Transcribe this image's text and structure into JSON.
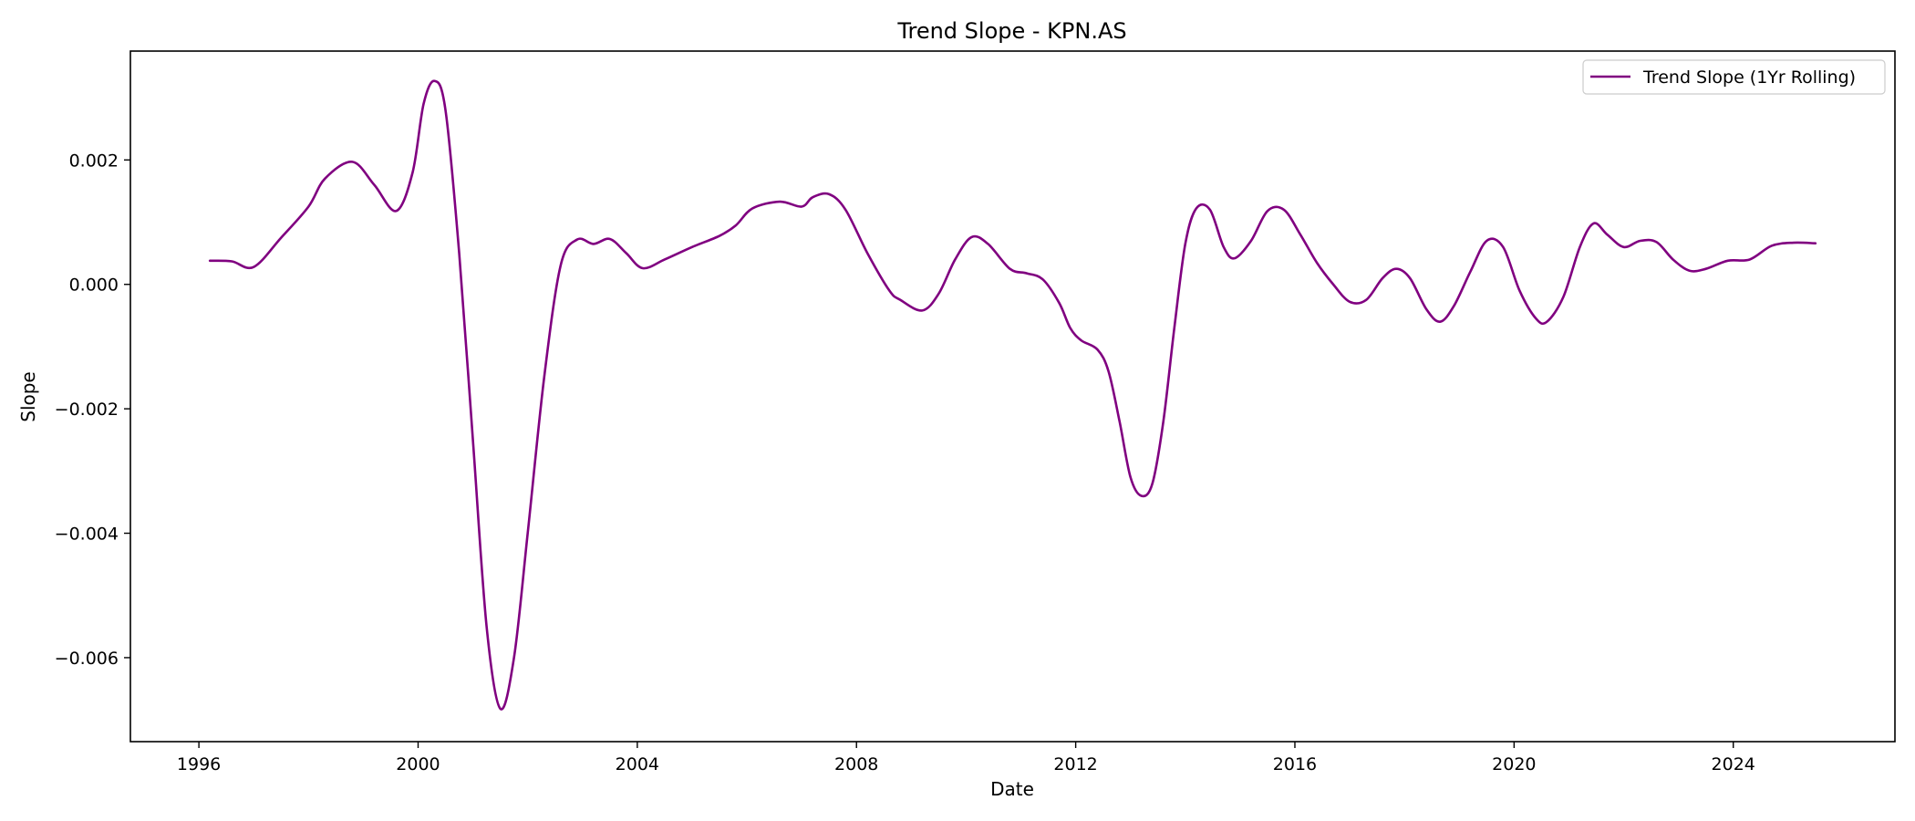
{
  "chart_data": {
    "type": "line",
    "title": "Trend Slope - KPN.AS",
    "xlabel": "Date",
    "ylabel": "Slope",
    "xlim": [
      1994.75,
      2026.95
    ],
    "ylim": [
      -0.00735,
      0.00375
    ],
    "x_ticks": [
      {
        "value": 1996,
        "label": "1996"
      },
      {
        "value": 2000,
        "label": "2000"
      },
      {
        "value": 2004,
        "label": "2004"
      },
      {
        "value": 2008,
        "label": "2008"
      },
      {
        "value": 2012,
        "label": "2012"
      },
      {
        "value": 2016,
        "label": "2016"
      },
      {
        "value": 2020,
        "label": "2020"
      },
      {
        "value": 2024,
        "label": "2024"
      }
    ],
    "y_ticks": [
      {
        "value": 0.002,
        "label": "0.002"
      },
      {
        "value": 0.0,
        "label": "0.000"
      },
      {
        "value": -0.002,
        "label": "−0.002"
      },
      {
        "value": -0.004,
        "label": "−0.004"
      },
      {
        "value": -0.006,
        "label": "−0.006"
      }
    ],
    "grid": false,
    "legend": {
      "placement": "top-right"
    },
    "series": [
      {
        "name": "Trend Slope (1Yr Rolling)",
        "color": "#800080",
        "points": [
          [
            1996.2,
            0.00038
          ],
          [
            1996.6,
            0.00037
          ],
          [
            1997.0,
            0.00028
          ],
          [
            1997.5,
            0.00075
          ],
          [
            1998.0,
            0.00125
          ],
          [
            1998.3,
            0.0017
          ],
          [
            1998.8,
            0.00197
          ],
          [
            1999.2,
            0.0016
          ],
          [
            1999.6,
            0.00118
          ],
          [
            1999.9,
            0.0018
          ],
          [
            2000.1,
            0.0029
          ],
          [
            2000.3,
            0.00327
          ],
          [
            2000.5,
            0.0028
          ],
          [
            2000.75,
            0.0005
          ],
          [
            2001.0,
            -0.0025
          ],
          [
            2001.25,
            -0.0055
          ],
          [
            2001.5,
            -0.00682
          ],
          [
            2001.75,
            -0.006
          ],
          [
            2002.0,
            -0.004
          ],
          [
            2002.3,
            -0.0015
          ],
          [
            2002.6,
            0.0003
          ],
          [
            2002.9,
            0.00072
          ],
          [
            2003.2,
            0.00065
          ],
          [
            2003.5,
            0.00073
          ],
          [
            2003.8,
            0.0005
          ],
          [
            2004.1,
            0.00026
          ],
          [
            2004.5,
            0.0004
          ],
          [
            2005.0,
            0.0006
          ],
          [
            2005.5,
            0.00078
          ],
          [
            2005.8,
            0.00095
          ],
          [
            2006.1,
            0.00122
          ],
          [
            2006.6,
            0.00133
          ],
          [
            2007.0,
            0.00125
          ],
          [
            2007.2,
            0.0014
          ],
          [
            2007.5,
            0.00145
          ],
          [
            2007.8,
            0.0012
          ],
          [
            2008.2,
            0.0005
          ],
          [
            2008.6,
            -0.0001
          ],
          [
            2008.8,
            -0.00025
          ],
          [
            2009.2,
            -0.00042
          ],
          [
            2009.5,
            -0.00015
          ],
          [
            2009.8,
            0.0004
          ],
          [
            2010.1,
            0.00076
          ],
          [
            2010.4,
            0.00065
          ],
          [
            2010.8,
            0.00025
          ],
          [
            2011.1,
            0.00018
          ],
          [
            2011.4,
            8e-05
          ],
          [
            2011.7,
            -0.0003
          ],
          [
            2011.9,
            -0.0007
          ],
          [
            2012.1,
            -0.0009
          ],
          [
            2012.4,
            -0.00105
          ],
          [
            2012.6,
            -0.0014
          ],
          [
            2012.8,
            -0.0022
          ],
          [
            2013.0,
            -0.0031
          ],
          [
            2013.2,
            -0.0034
          ],
          [
            2013.4,
            -0.0032
          ],
          [
            2013.6,
            -0.0022
          ],
          [
            2013.8,
            -0.0007
          ],
          [
            2014.0,
            0.00065
          ],
          [
            2014.2,
            0.00122
          ],
          [
            2014.45,
            0.0012
          ],
          [
            2014.7,
            0.0006
          ],
          [
            2014.9,
            0.00042
          ],
          [
            2015.2,
            0.0007
          ],
          [
            2015.5,
            0.00118
          ],
          [
            2015.8,
            0.0012
          ],
          [
            2016.1,
            0.0008
          ],
          [
            2016.4,
            0.00035
          ],
          [
            2016.7,
            0.0
          ],
          [
            2017.0,
            -0.00028
          ],
          [
            2017.3,
            -0.00025
          ],
          [
            2017.6,
            0.0001
          ],
          [
            2017.85,
            0.00025
          ],
          [
            2018.1,
            0.0001
          ],
          [
            2018.4,
            -0.0004
          ],
          [
            2018.65,
            -0.0006
          ],
          [
            2018.9,
            -0.00035
          ],
          [
            2019.2,
            0.0002
          ],
          [
            2019.5,
            0.0007
          ],
          [
            2019.8,
            0.0006
          ],
          [
            2020.1,
            -0.0001
          ],
          [
            2020.4,
            -0.00055
          ],
          [
            2020.6,
            -0.0006
          ],
          [
            2020.9,
            -0.0002
          ],
          [
            2021.2,
            0.0006
          ],
          [
            2021.45,
            0.00098
          ],
          [
            2021.7,
            0.0008
          ],
          [
            2022.0,
            0.0006
          ],
          [
            2022.3,
            0.0007
          ],
          [
            2022.6,
            0.00068
          ],
          [
            2022.9,
            0.0004
          ],
          [
            2023.2,
            0.00022
          ],
          [
            2023.5,
            0.00025
          ],
          [
            2023.9,
            0.00038
          ],
          [
            2024.3,
            0.0004
          ],
          [
            2024.7,
            0.00062
          ],
          [
            2025.1,
            0.00067
          ],
          [
            2025.5,
            0.00066
          ]
        ]
      }
    ]
  }
}
